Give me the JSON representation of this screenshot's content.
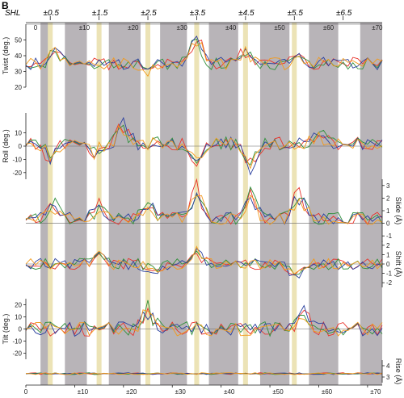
{
  "figure": {
    "panel_letter": "B",
    "shl_label": "SHL",
    "shl_ticks": [
      "±0.5",
      "±1.5",
      "±2.5",
      "±3.5",
      "±4.5",
      "±5.5",
      "±6.5"
    ],
    "top_axis_ticks": [
      "0",
      "±10",
      "±20",
      "±30",
      "±40",
      "±50",
      "±60",
      "±70"
    ],
    "bottom_axis_ticks": [
      "0",
      "±10",
      "±20",
      "±30",
      "±40",
      "±50",
      "±60",
      "±70"
    ]
  },
  "colors": {
    "gray_band": "#b8b4b8",
    "yellow_band": "#ece3b6",
    "series": [
      "#e8322a",
      "#2f8f3a",
      "#2a3f9e",
      "#f29a1c"
    ]
  },
  "chart_data": {
    "type": "line",
    "x": {
      "min": 0,
      "max": 73
    },
    "gray_bands": [
      [
        3,
        5
      ],
      [
        8,
        12.5
      ],
      [
        17,
        23.5
      ],
      [
        27.5,
        33
      ],
      [
        37.5,
        43.5
      ],
      [
        48,
        54
      ],
      [
        58,
        64
      ],
      [
        68.5,
        73
      ]
    ],
    "yellow_bands": [
      [
        4.5,
        5.5
      ],
      [
        14.5,
        15.5
      ],
      [
        24.5,
        25.5
      ],
      [
        34.5,
        35.5
      ],
      [
        44.5,
        45.5
      ],
      [
        54.5,
        55.5
      ]
    ],
    "series_names": [
      "",
      "",
      "",
      ""
    ],
    "panels": [
      {
        "key": "twist",
        "label": "Twist (deg.)",
        "side": "left",
        "ylim": [
          20,
          60
        ],
        "ticks": [
          20,
          30,
          40,
          50
        ],
        "hline": 60,
        "seed": 11,
        "base": 35,
        "amp": 4,
        "spikes": [
          [
            6,
            10
          ],
          [
            25,
            -6
          ],
          [
            35,
            18
          ],
          [
            45,
            8
          ],
          [
            56,
            6
          ]
        ]
      },
      {
        "key": "roll",
        "label": "Roll (deg.)",
        "side": "left",
        "ylim": [
          -25,
          25
        ],
        "ticks": [
          -20,
          -10,
          0,
          10
        ],
        "hline": 0,
        "seed": 23,
        "base": 2,
        "amp": 5,
        "spikes": [
          [
            5,
            -12
          ],
          [
            14,
            -10
          ],
          [
            20,
            14
          ],
          [
            35,
            -16
          ],
          [
            46,
            -20
          ],
          [
            60,
            8
          ]
        ]
      },
      {
        "key": "slide",
        "label": "Slide (Å)",
        "side": "right",
        "ylim": [
          -1.5,
          3.5
        ],
        "ticks": [
          -1,
          0,
          1,
          2,
          3
        ],
        "hline": 0,
        "seed": 37,
        "base": 0.4,
        "amp": 0.5,
        "spikes": [
          [
            6,
            1.0
          ],
          [
            15,
            1.0
          ],
          [
            25,
            1.2
          ],
          [
            35,
            2.3
          ],
          [
            46,
            2.0
          ],
          [
            56,
            2.2
          ]
        ]
      },
      {
        "key": "shift",
        "label": "Shift (Å)",
        "side": "right",
        "ylim": [
          -2.5,
          2.5
        ],
        "ticks": [
          -2,
          -1,
          0,
          1,
          2
        ],
        "hline": 0,
        "seed": 41,
        "base": 0,
        "amp": 0.6,
        "spikes": [
          [
            15,
            1.4
          ],
          [
            26,
            -1.0
          ],
          [
            35,
            1.2
          ],
          [
            55,
            -1.5
          ]
        ]
      },
      {
        "key": "tilt",
        "label": "Tilt (deg.)",
        "side": "left",
        "ylim": [
          -25,
          25
        ],
        "ticks": [
          -20,
          -10,
          0,
          10,
          20
        ],
        "hline": 0,
        "seed": 53,
        "base": 0,
        "amp": 6,
        "spikes": [
          [
            25,
            18
          ],
          [
            57,
            12
          ]
        ]
      },
      {
        "key": "rise",
        "label": "Rise (Å)",
        "side": "right",
        "ylim": [
          2.5,
          4.5
        ],
        "ticks": [
          3,
          4
        ],
        "hline": 3.3,
        "seed": 67,
        "base": 3.3,
        "amp": 0.08,
        "spikes": []
      }
    ]
  }
}
